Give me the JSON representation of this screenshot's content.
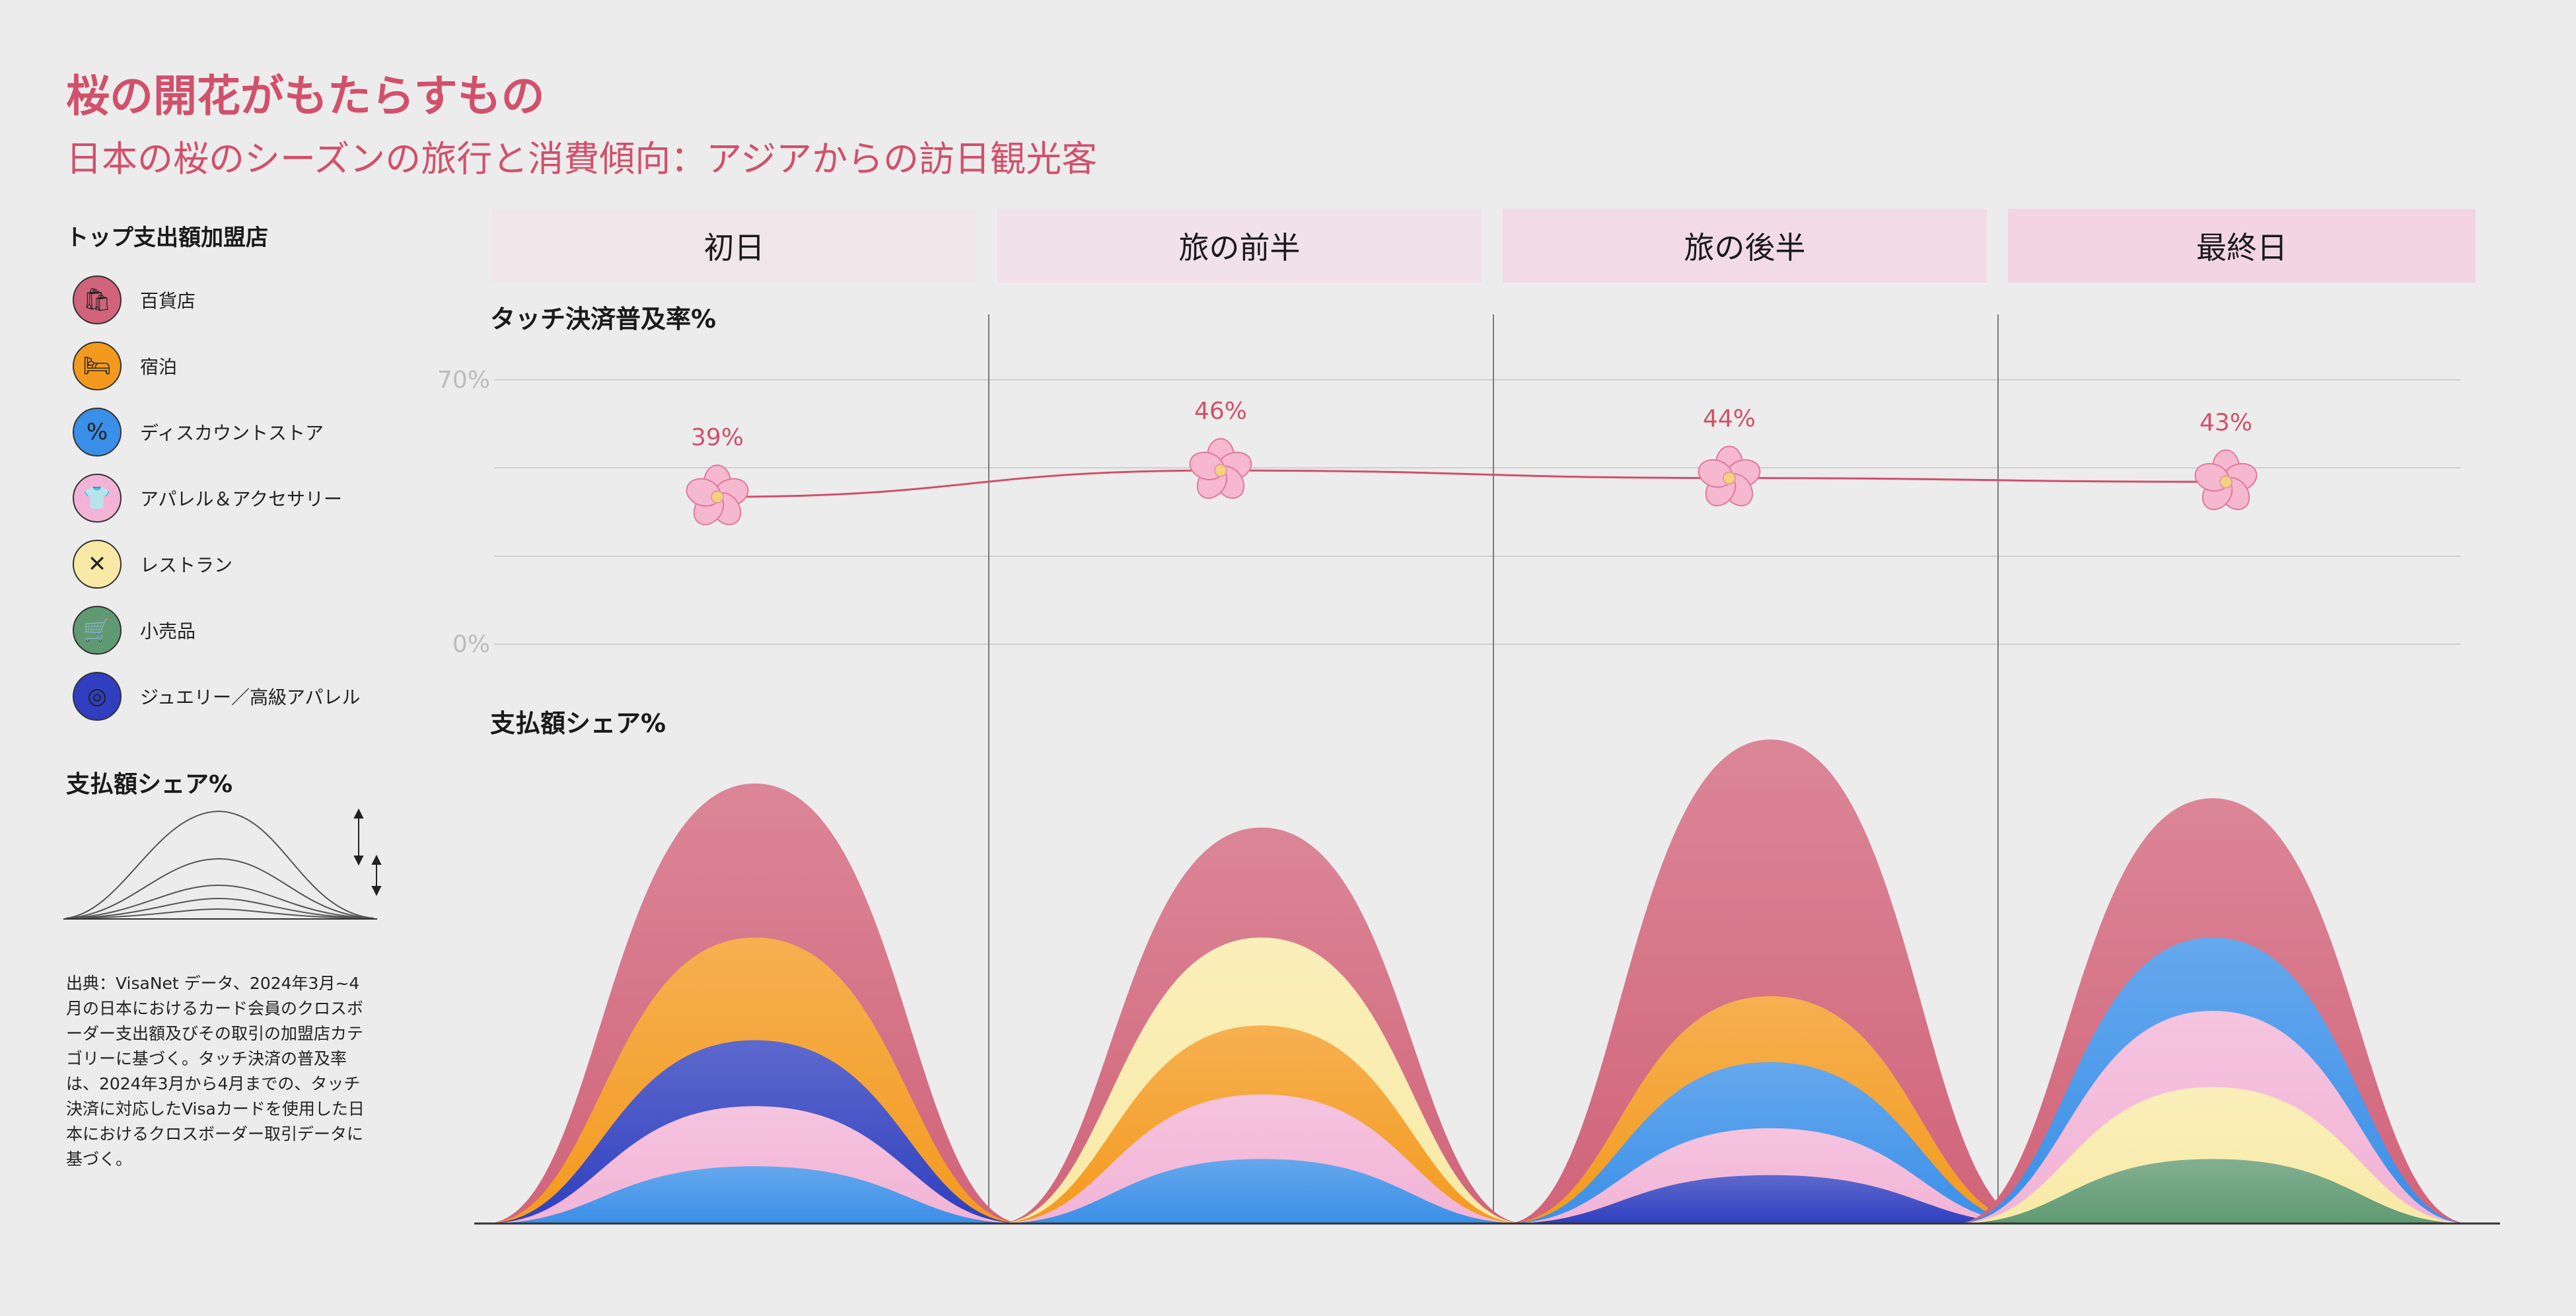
{
  "title": "桜の開花がもたらすもの",
  "subtitle": "日本の桜のシーズンの旅行と消費傾向：アジアからの訪日観光客",
  "legend": {
    "title": "トップ支出額加盟店",
    "items": [
      {
        "label": "百貨店",
        "color": "#d1647a",
        "icon": "shopping-bag-icon",
        "glyph": "🛍"
      },
      {
        "label": "宿泊",
        "color": "#f39a1e",
        "icon": "bed-icon",
        "glyph": "🛏"
      },
      {
        "label": "ディスカウントストア",
        "color": "#3a8fe8",
        "icon": "discount-badge-icon",
        "glyph": "%"
      },
      {
        "label": "アパレル＆アクセサリー",
        "color": "#f2b3d6",
        "icon": "clothing-icon",
        "glyph": "👕"
      },
      {
        "label": "レストラン",
        "color": "#f8eaa6",
        "icon": "fork-spoon-icon",
        "glyph": "✕"
      },
      {
        "label": "小売品",
        "color": "#5f9a72",
        "icon": "cart-icon",
        "glyph": "🛒"
      },
      {
        "label": "ジュエリー／高級アパレル",
        "color": "#2f3fbf",
        "icon": "rings-icon",
        "glyph": "◎"
      }
    ]
  },
  "share_key_title": "支払額シェア%",
  "source_note": "出典：VisaNet データ、2024年3月~4月の日本におけるカード会員のクロスボーダー支出額及びその取引の加盟店カテゴリーに基づく。タッチ決済の普及率は、2024年3月から4月までの、タッチ決済に対応したVisaカードを使用した日本におけるクロスボーダー取引データに基づく。",
  "chart_data": [
    {
      "type": "line",
      "title": "タッチ決済普及率%",
      "categories": [
        "初日",
        "旅の前半",
        "旅の後半",
        "最終日"
      ],
      "values": [
        39,
        46,
        44,
        43
      ],
      "value_labels": [
        "39%",
        "46%",
        "44%",
        "43%"
      ],
      "ylim": [
        0,
        70
      ],
      "y_tick_labels": [
        "70%",
        "0%"
      ],
      "grid": true,
      "line_color": "#d1506b",
      "marker": "sakura-flower"
    },
    {
      "type": "area",
      "title": "支払額シェア%",
      "categories": [
        "初日",
        "旅の前半",
        "旅の後半",
        "最終日"
      ],
      "note": "Each stage shows overlapping bell-shaped areas; layer heights are estimated relative shares (same scale across stages).",
      "series": [
        {
          "name": "百貨店",
          "color": "#d1647a",
          "values": [
            30,
            27,
            33,
            29
          ]
        },
        {
          "name": "宿泊",
          "color": "#f39a1e",
          "values": [
            19.5,
            13.5,
            15.5,
            0
          ]
        },
        {
          "name": "ディスカウントストア",
          "color": "#3a8fe8",
          "values": [
            3.9,
            4.4,
            11,
            19.5
          ]
        },
        {
          "name": "アパレル＆アクセサリー",
          "color": "#f2b3d6",
          "values": [
            8,
            8.8,
            6.5,
            14.5
          ]
        },
        {
          "name": "レストラン",
          "color": "#f8eaa6",
          "values": [
            0,
            19.5,
            0,
            9.3
          ]
        },
        {
          "name": "小売品",
          "color": "#5f9a72",
          "values": [
            0,
            0,
            0,
            4.4
          ]
        },
        {
          "name": "ジュエリー／高級アパレル",
          "color": "#2f3fbf",
          "values": [
            12.5,
            0,
            3.3,
            0
          ]
        }
      ]
    }
  ]
}
